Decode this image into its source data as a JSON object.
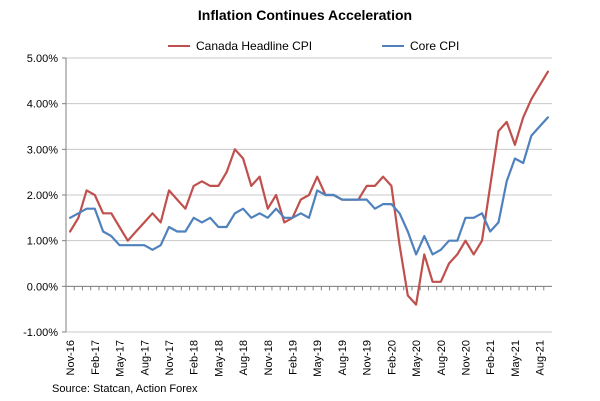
{
  "chart_data": {
    "type": "line",
    "title": "Inflation Continues Acceleration",
    "source": "Source: Statcan, Action Forex",
    "ylim": [
      -1,
      5
    ],
    "yticks": [
      "5.00%",
      "4.00%",
      "3.00%",
      "2.00%",
      "1.00%",
      "0.00%",
      "-1.00%"
    ],
    "ytick_values": [
      5,
      4,
      3,
      2,
      1,
      0,
      -1
    ],
    "grid": true,
    "legend_position": "top",
    "x": [
      "Nov-16",
      "Dec-16",
      "Jan-17",
      "Feb-17",
      "Mar-17",
      "Apr-17",
      "May-17",
      "Jun-17",
      "Jul-17",
      "Aug-17",
      "Sep-17",
      "Oct-17",
      "Nov-17",
      "Dec-17",
      "Jan-18",
      "Feb-18",
      "Mar-18",
      "Apr-18",
      "May-18",
      "Jun-18",
      "Jul-18",
      "Aug-18",
      "Sep-18",
      "Oct-18",
      "Nov-18",
      "Dec-18",
      "Jan-19",
      "Feb-19",
      "Mar-19",
      "Apr-19",
      "May-19",
      "Jun-19",
      "Jul-19",
      "Aug-19",
      "Sep-19",
      "Oct-19",
      "Nov-19",
      "Dec-19",
      "Jan-20",
      "Feb-20",
      "Mar-20",
      "Apr-20",
      "May-20",
      "Jun-20",
      "Jul-20",
      "Aug-20",
      "Sep-20",
      "Oct-20",
      "Nov-20",
      "Dec-20",
      "Jan-21",
      "Feb-21",
      "Mar-21",
      "Apr-21",
      "May-21",
      "Jun-21",
      "Jul-21",
      "Aug-21",
      "Sep-21"
    ],
    "xtick_labels": [
      "Nov-16",
      "Feb-17",
      "May-17",
      "Aug-17",
      "Nov-17",
      "Feb-18",
      "May-18",
      "Aug-18",
      "Nov-18",
      "Feb-19",
      "May-19",
      "Aug-19",
      "Nov-19",
      "Feb-20",
      "May-20",
      "Aug-20",
      "Nov-20",
      "Feb-21",
      "May-21",
      "Aug-21"
    ],
    "series": [
      {
        "name": "Canada Headline CPI",
        "color": "#c0504d",
        "values": [
          1.2,
          1.5,
          2.1,
          2.0,
          1.6,
          1.6,
          1.3,
          1.0,
          1.2,
          1.4,
          1.6,
          1.4,
          2.1,
          1.9,
          1.7,
          2.2,
          2.3,
          2.2,
          2.2,
          2.5,
          3.0,
          2.8,
          2.2,
          2.4,
          1.7,
          2.0,
          1.4,
          1.5,
          1.9,
          2.0,
          2.4,
          2.0,
          2.0,
          1.9,
          1.9,
          1.9,
          2.2,
          2.2,
          2.4,
          2.2,
          0.9,
          -0.2,
          -0.4,
          0.7,
          0.1,
          0.1,
          0.5,
          0.7,
          1.0,
          0.7,
          1.0,
          2.2,
          3.4,
          3.6,
          3.1,
          3.7,
          4.1,
          4.4,
          4.7
        ]
      },
      {
        "name": "Core CPI",
        "color": "#4f81bd",
        "values": [
          1.5,
          1.6,
          1.7,
          1.7,
          1.2,
          1.1,
          0.9,
          0.9,
          0.9,
          0.9,
          0.8,
          0.9,
          1.3,
          1.2,
          1.2,
          1.5,
          1.4,
          1.5,
          1.3,
          1.3,
          1.6,
          1.7,
          1.5,
          1.6,
          1.5,
          1.7,
          1.5,
          1.5,
          1.6,
          1.5,
          2.1,
          2.0,
          2.0,
          1.9,
          1.9,
          1.9,
          1.9,
          1.7,
          1.8,
          1.8,
          1.6,
          1.2,
          0.7,
          1.1,
          0.7,
          0.8,
          1.0,
          1.0,
          1.5,
          1.5,
          1.6,
          1.2,
          1.4,
          2.3,
          2.8,
          2.7,
          3.3,
          3.5,
          3.7
        ]
      }
    ]
  }
}
